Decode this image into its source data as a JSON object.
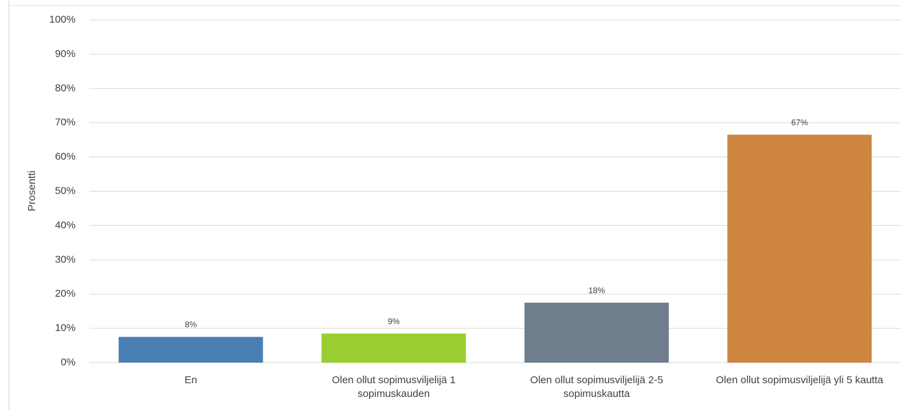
{
  "chart_data": {
    "type": "bar",
    "y_label": "Prosentti",
    "categories": [
      "En",
      "Olen ollut sopimusviljelijä 1 sopimuskauden",
      "Olen ollut sopimusviljelijä 2-5 sopimuskautta",
      "Olen ollut sopimusviljelijä yli 5 kautta"
    ],
    "values": [
      7.5,
      8.5,
      17.5,
      66.5
    ],
    "value_labels": [
      "8%",
      "9%",
      "18%",
      "67%"
    ],
    "colors": [
      "#4a7fb5",
      "#9acd32",
      "#6f7d8c",
      "#cd853f"
    ],
    "ylim": [
      0,
      100
    ],
    "yticks": [
      {
        "value": 0,
        "label": "0%"
      },
      {
        "value": 10,
        "label": "10%"
      },
      {
        "value": 20,
        "label": "20%"
      },
      {
        "value": 30,
        "label": "30%"
      },
      {
        "value": 40,
        "label": "40%"
      },
      {
        "value": 50,
        "label": "50%"
      },
      {
        "value": 60,
        "label": "60%"
      },
      {
        "value": 70,
        "label": "70%"
      },
      {
        "value": 80,
        "label": "80%"
      },
      {
        "value": 90,
        "label": "90%"
      },
      {
        "value": 100,
        "label": "100%"
      }
    ],
    "grid": true
  }
}
